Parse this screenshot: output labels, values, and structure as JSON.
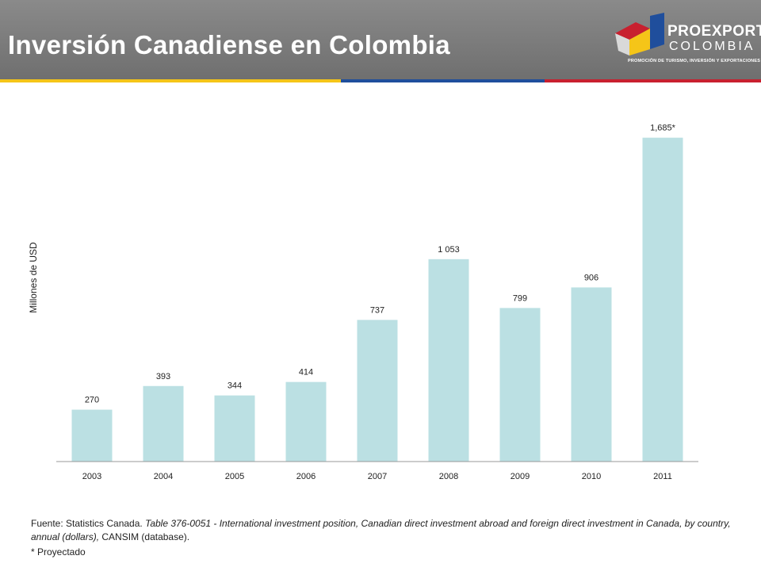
{
  "header": {
    "title": "Inversión Canadiense en Colombia",
    "background_color": "#7a7a7a",
    "flag_colors": [
      "#f5c518",
      "#1f4e9c",
      "#c8202f"
    ]
  },
  "logo": {
    "brand_line1": "PROEXPORT",
    "brand_line2": "COLOMBIA",
    "tagline": "PROMOCIÓN DE TURISMO, INVERSIÓN Y EXPORTACIONES",
    "colors": [
      "#f5c518",
      "#1f4e9c",
      "#c8202f"
    ]
  },
  "chart_data": {
    "type": "bar",
    "title": "",
    "xlabel": "",
    "ylabel": "Millones de USD",
    "categories": [
      "2003",
      "2004",
      "2005",
      "2006",
      "2007",
      "2008",
      "2009",
      "2010",
      "2011"
    ],
    "values": [
      270,
      393,
      344,
      414,
      737,
      1053,
      799,
      906,
      1685
    ],
    "data_labels": [
      "270",
      "393",
      "344",
      "414",
      "737",
      "1 053",
      "799",
      "906",
      "1,685*"
    ],
    "ylim": [
      0,
      1700
    ],
    "grid": false,
    "bar_color": "#bbe0e3"
  },
  "footer": {
    "source_prefix": "Fuente: Statistics Canada.",
    "source_italic": "Table 376-0051 - International investment position, Canadian direct investment abroad and foreign direct investment in Canada, by country, annual (dollars),",
    "source_suffix": "CANSIM (database).",
    "note": "* Proyectado"
  }
}
